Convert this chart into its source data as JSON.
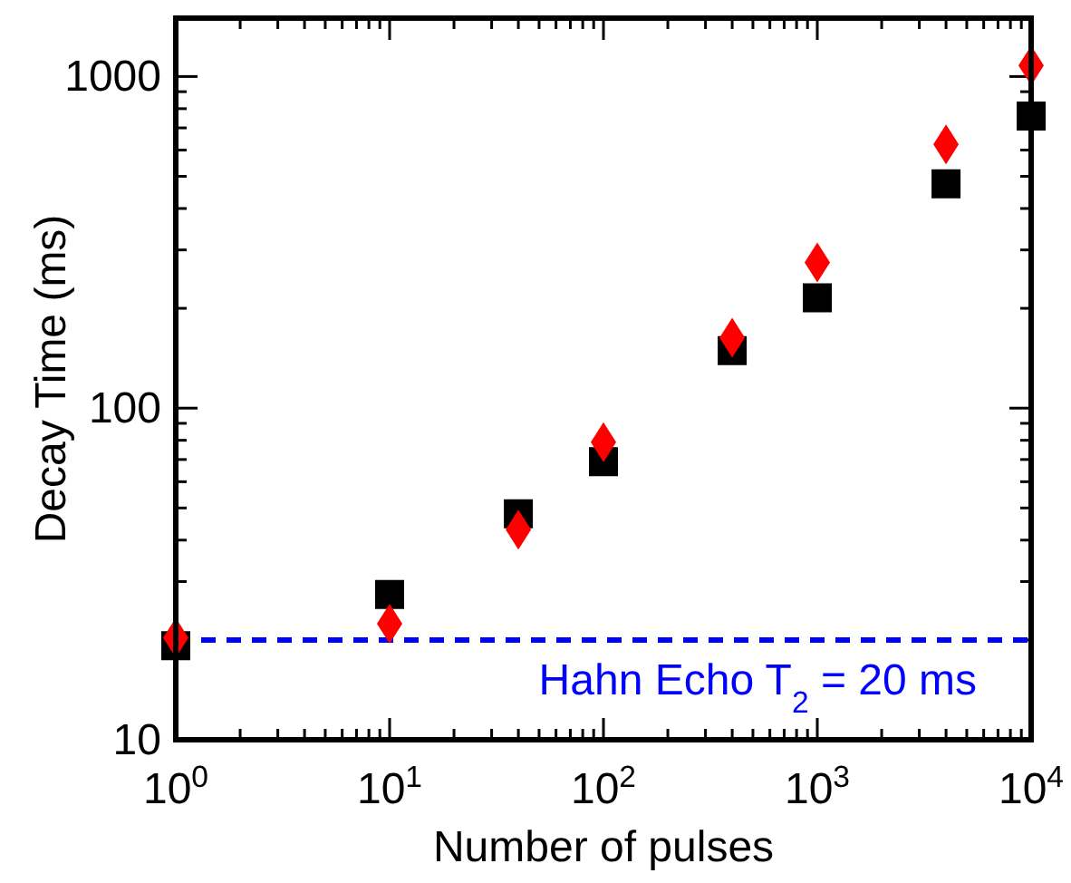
{
  "chart_data": {
    "type": "scatter",
    "xlabel": "Number of pulses",
    "ylabel": "Decay Time (ms)",
    "log": "xy",
    "grid": false,
    "xlim": [
      1,
      10000
    ],
    "ylim": [
      10,
      1500
    ],
    "xticks": [
      {
        "value": 1,
        "label": "10$^{0}$"
      },
      {
        "value": 10,
        "label": "10$^{1}$"
      },
      {
        "value": 100,
        "label": "10$^{2}$"
      },
      {
        "value": 1000,
        "label": "10$^{3}$"
      },
      {
        "value": 10000,
        "label": "10$^{4}$"
      },
      {
        "value": 2,
        "label": null
      },
      {
        "value": 3,
        "label": null
      },
      {
        "value": 4,
        "label": null
      },
      {
        "value": 5,
        "label": null
      },
      {
        "value": 6,
        "label": null
      },
      {
        "value": 7,
        "label": null
      },
      {
        "value": 8,
        "label": null
      },
      {
        "value": 9,
        "label": null
      },
      {
        "value": 20,
        "label": null
      },
      {
        "value": 30,
        "label": null
      },
      {
        "value": 40,
        "label": null
      },
      {
        "value": 50,
        "label": null
      },
      {
        "value": 60,
        "label": null
      },
      {
        "value": 70,
        "label": null
      },
      {
        "value": 80,
        "label": null
      },
      {
        "value": 90,
        "label": null
      },
      {
        "value": 200,
        "label": null
      },
      {
        "value": 300,
        "label": null
      },
      {
        "value": 400,
        "label": null
      },
      {
        "value": 500,
        "label": null
      },
      {
        "value": 600,
        "label": null
      },
      {
        "value": 700,
        "label": null
      },
      {
        "value": 800,
        "label": null
      },
      {
        "value": 900,
        "label": null
      },
      {
        "value": 2000,
        "label": null
      },
      {
        "value": 3000,
        "label": null
      },
      {
        "value": 4000,
        "label": null
      },
      {
        "value": 5000,
        "label": null
      },
      {
        "value": 6000,
        "label": null
      },
      {
        "value": 7000,
        "label": null
      },
      {
        "value": 8000,
        "label": null
      },
      {
        "value": 9000,
        "label": null
      }
    ],
    "yticks": [
      10,
      100,
      1000,
      {
        "value": 20,
        "label": null
      },
      {
        "value": 30,
        "label": null
      },
      {
        "value": 40,
        "label": null
      },
      {
        "value": 50,
        "label": null
      },
      {
        "value": 60,
        "label": null
      },
      {
        "value": 70,
        "label": null
      },
      {
        "value": 80,
        "label": null
      },
      {
        "value": 90,
        "label": null
      },
      {
        "value": 200,
        "label": null
      },
      {
        "value": 300,
        "label": null
      },
      {
        "value": 400,
        "label": null
      },
      {
        "value": 500,
        "label": null
      },
      {
        "value": 600,
        "label": null
      },
      {
        "value": 700,
        "label": null
      },
      {
        "value": 800,
        "label": null
      },
      {
        "value": 900,
        "label": null
      }
    ],
    "x": [
      1,
      10,
      40,
      100,
      400,
      1000,
      4000,
      10000
    ],
    "series": [
      {
        "color": "#000000",
        "marker": "square",
        "values": [
          19.2,
          27.4,
          48,
          69,
          149,
          215,
          475,
          760
        ]
      },
      {
        "color": "#ff0000",
        "marker": "diamond",
        "values": [
          20.3,
          22.4,
          43,
          79,
          163,
          275,
          624,
          1080
        ]
      }
    ],
    "ref_lines": [
      {
        "axis": "y",
        "value": 20,
        "label": "Hahn Echo T$_{2}$ = 20 ms",
        "color": "#0000ff",
        "line_style": "dashed"
      }
    ]
  }
}
